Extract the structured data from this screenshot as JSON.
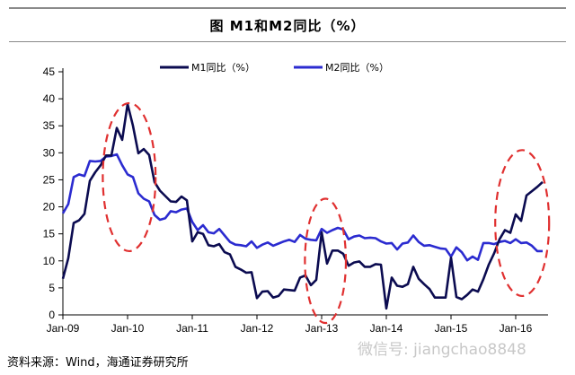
{
  "header": {
    "title": "图    M1和M2同比（%）"
  },
  "footer": {
    "source": "资料来源：Wind，海通证券研究所",
    "watermark": "微信号: jiangchao8848"
  },
  "colors": {
    "m1": "#0b0b50",
    "m2": "#2b2bd0",
    "highlight": "#e03030",
    "axis": "#000000"
  },
  "chart_data": {
    "type": "line",
    "title": "M1和M2同比（%）",
    "xlabel": "",
    "ylabel": "",
    "ylim": [
      0,
      45
    ],
    "yticks": [
      0,
      5,
      10,
      15,
      20,
      25,
      30,
      35,
      40,
      45
    ],
    "xlim": [
      0,
      90
    ],
    "xticks": [
      {
        "label": "Jan-09",
        "x": 0
      },
      {
        "label": "Jan-10",
        "x": 12
      },
      {
        "label": "Jan-11",
        "x": 24
      },
      {
        "label": "Jan-12",
        "x": 36
      },
      {
        "label": "Jan-13",
        "x": 48
      },
      {
        "label": "Jan-14",
        "x": 60
      },
      {
        "label": "Jan-15",
        "x": 72
      },
      {
        "label": "Jan-16",
        "x": 84
      }
    ],
    "legend": "top",
    "series": [
      {
        "name": "M1同比（%）",
        "values": [
          [
            0,
            6.7
          ],
          [
            1,
            10.5
          ],
          [
            2,
            17.0
          ],
          [
            3,
            17.5
          ],
          [
            4,
            18.7
          ],
          [
            5,
            24.8
          ],
          [
            6,
            26.4
          ],
          [
            7,
            27.7
          ],
          [
            8,
            29.5
          ],
          [
            9,
            29.5
          ],
          [
            10,
            34.6
          ],
          [
            11,
            32.4
          ],
          [
            12,
            39.0
          ],
          [
            13,
            35.0
          ],
          [
            14,
            29.9
          ],
          [
            15,
            30.7
          ],
          [
            16,
            29.6
          ],
          [
            17,
            24.6
          ],
          [
            18,
            23.0
          ],
          [
            19,
            22.0
          ],
          [
            20,
            21.0
          ],
          [
            21,
            20.9
          ],
          [
            22,
            21.9
          ],
          [
            23,
            21.2
          ],
          [
            24,
            13.6
          ],
          [
            25,
            15.3
          ],
          [
            26,
            15.0
          ],
          [
            27,
            12.9
          ],
          [
            28,
            12.7
          ],
          [
            29,
            13.1
          ],
          [
            30,
            11.6
          ],
          [
            31,
            11.2
          ],
          [
            32,
            8.9
          ],
          [
            33,
            8.4
          ],
          [
            34,
            7.8
          ],
          [
            35,
            7.9
          ],
          [
            36,
            3.1
          ],
          [
            37,
            4.3
          ],
          [
            38,
            4.4
          ],
          [
            39,
            3.2
          ],
          [
            40,
            3.5
          ],
          [
            41,
            4.7
          ],
          [
            42,
            4.6
          ],
          [
            43,
            4.5
          ],
          [
            44,
            6.9
          ],
          [
            45,
            7.3
          ],
          [
            46,
            5.5
          ],
          [
            47,
            6.5
          ],
          [
            48,
            15.3
          ],
          [
            49,
            9.5
          ],
          [
            50,
            11.9
          ],
          [
            51,
            11.9
          ],
          [
            52,
            11.3
          ],
          [
            53,
            9.1
          ],
          [
            54,
            9.7
          ],
          [
            55,
            9.9
          ],
          [
            56,
            8.9
          ],
          [
            57,
            8.9
          ],
          [
            58,
            9.4
          ],
          [
            59,
            9.3
          ],
          [
            60,
            1.2
          ],
          [
            61,
            6.9
          ],
          [
            62,
            5.4
          ],
          [
            63,
            5.2
          ],
          [
            64,
            5.7
          ],
          [
            65,
            8.9
          ],
          [
            66,
            6.7
          ],
          [
            67,
            5.7
          ],
          [
            68,
            4.8
          ],
          [
            69,
            3.2
          ],
          [
            70,
            3.2
          ],
          [
            71,
            3.2
          ],
          [
            72,
            10.6
          ],
          [
            73,
            3.3
          ],
          [
            74,
            2.9
          ],
          [
            75,
            3.7
          ],
          [
            76,
            4.7
          ],
          [
            77,
            4.3
          ],
          [
            78,
            6.6
          ],
          [
            79,
            9.3
          ],
          [
            80,
            11.4
          ],
          [
            81,
            14.0
          ],
          [
            82,
            15.7
          ],
          [
            83,
            15.2
          ],
          [
            84,
            18.6
          ],
          [
            85,
            17.4
          ],
          [
            86,
            22.1
          ],
          [
            87,
            22.9
          ],
          [
            88,
            23.7
          ],
          [
            89,
            24.6
          ]
        ]
      },
      {
        "name": "M2同比（%）",
        "values": [
          [
            0,
            18.8
          ],
          [
            1,
            20.5
          ],
          [
            2,
            25.5
          ],
          [
            3,
            26.0
          ],
          [
            4,
            25.7
          ],
          [
            5,
            28.5
          ],
          [
            6,
            28.4
          ],
          [
            7,
            28.5
          ],
          [
            8,
            29.3
          ],
          [
            9,
            29.4
          ],
          [
            10,
            29.7
          ],
          [
            11,
            27.7
          ],
          [
            12,
            26.0
          ],
          [
            13,
            25.5
          ],
          [
            14,
            22.5
          ],
          [
            15,
            21.5
          ],
          [
            16,
            21.0
          ],
          [
            17,
            18.5
          ],
          [
            18,
            17.6
          ],
          [
            19,
            17.9
          ],
          [
            20,
            19.2
          ],
          [
            21,
            19.0
          ],
          [
            22,
            19.5
          ],
          [
            23,
            19.7
          ],
          [
            24,
            17.2
          ],
          [
            25,
            15.7
          ],
          [
            26,
            16.6
          ],
          [
            27,
            15.3
          ],
          [
            28,
            15.1
          ],
          [
            29,
            15.9
          ],
          [
            30,
            14.7
          ],
          [
            31,
            13.5
          ],
          [
            32,
            13.0
          ],
          [
            33,
            12.9
          ],
          [
            34,
            12.7
          ],
          [
            35,
            13.6
          ],
          [
            36,
            12.4
          ],
          [
            37,
            13.0
          ],
          [
            38,
            13.4
          ],
          [
            39,
            12.8
          ],
          [
            40,
            13.2
          ],
          [
            41,
            13.6
          ],
          [
            42,
            13.9
          ],
          [
            43,
            13.5
          ],
          [
            44,
            14.8
          ],
          [
            45,
            14.1
          ],
          [
            46,
            13.9
          ],
          [
            47,
            13.8
          ],
          [
            48,
            15.9
          ],
          [
            49,
            15.2
          ],
          [
            50,
            15.7
          ],
          [
            51,
            16.1
          ],
          [
            52,
            15.8
          ],
          [
            53,
            14.0
          ],
          [
            54,
            14.5
          ],
          [
            55,
            14.7
          ],
          [
            56,
            14.2
          ],
          [
            57,
            14.3
          ],
          [
            58,
            14.2
          ],
          [
            59,
            13.6
          ],
          [
            60,
            13.2
          ],
          [
            61,
            13.3
          ],
          [
            62,
            12.1
          ],
          [
            63,
            13.2
          ],
          [
            64,
            13.4
          ],
          [
            65,
            14.7
          ],
          [
            66,
            13.5
          ],
          [
            67,
            12.8
          ],
          [
            68,
            12.9
          ],
          [
            69,
            12.6
          ],
          [
            70,
            12.3
          ],
          [
            71,
            12.2
          ],
          [
            72,
            10.8
          ],
          [
            73,
            12.5
          ],
          [
            74,
            11.6
          ],
          [
            75,
            10.1
          ],
          [
            76,
            10.8
          ],
          [
            77,
            10.2
          ],
          [
            78,
            13.3
          ],
          [
            79,
            13.3
          ],
          [
            80,
            13.1
          ],
          [
            81,
            13.5
          ],
          [
            82,
            13.7
          ],
          [
            83,
            13.3
          ],
          [
            84,
            14.0
          ],
          [
            85,
            13.3
          ],
          [
            86,
            13.4
          ],
          [
            87,
            12.8
          ],
          [
            88,
            11.8
          ],
          [
            89,
            11.8
          ]
        ]
      }
    ],
    "annotations": [
      {
        "type": "ellipse",
        "label": "highlight",
        "cx": 12.3,
        "cy": 25.5,
        "rx": 4.9,
        "ry": 13.7
      },
      {
        "type": "ellipse",
        "label": "highlight",
        "cx": 48.7,
        "cy": 10.0,
        "rx": 3.8,
        "ry": 11.5
      },
      {
        "type": "ellipse",
        "label": "highlight",
        "cx": 85.2,
        "cy": 17.0,
        "rx": 5.0,
        "ry": 13.5
      }
    ]
  }
}
